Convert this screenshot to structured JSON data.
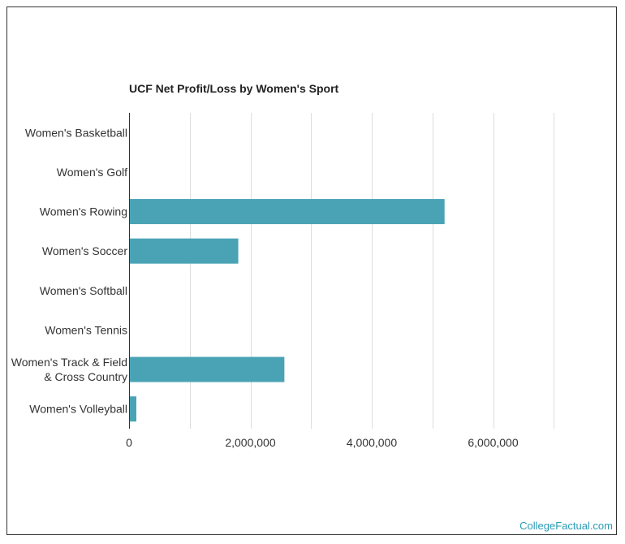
{
  "chart_data": {
    "type": "bar",
    "orientation": "horizontal",
    "title": "UCF Net Profit/Loss by Women's Sport",
    "xlabel": "",
    "ylabel": "",
    "categories": [
      "Women's Basketball",
      "Women's Golf",
      "Women's Rowing",
      "Women's Soccer",
      "Women's Softball",
      "Women's Tennis",
      "Women's Track & Field & Cross Country",
      "Women's Volleyball"
    ],
    "values": [
      0,
      0,
      5200000,
      1800000,
      0,
      0,
      2560000,
      120000
    ],
    "xlim": [
      0,
      8000000
    ],
    "xticks": [
      0,
      2000000,
      4000000,
      6000000
    ],
    "xtick_labels": [
      "0",
      "2,000,000",
      "4,000,000",
      "6,000,000"
    ],
    "grid": true,
    "bar_color": "#4aa3b5"
  },
  "footer": {
    "source": "CollegeFactual.com"
  }
}
